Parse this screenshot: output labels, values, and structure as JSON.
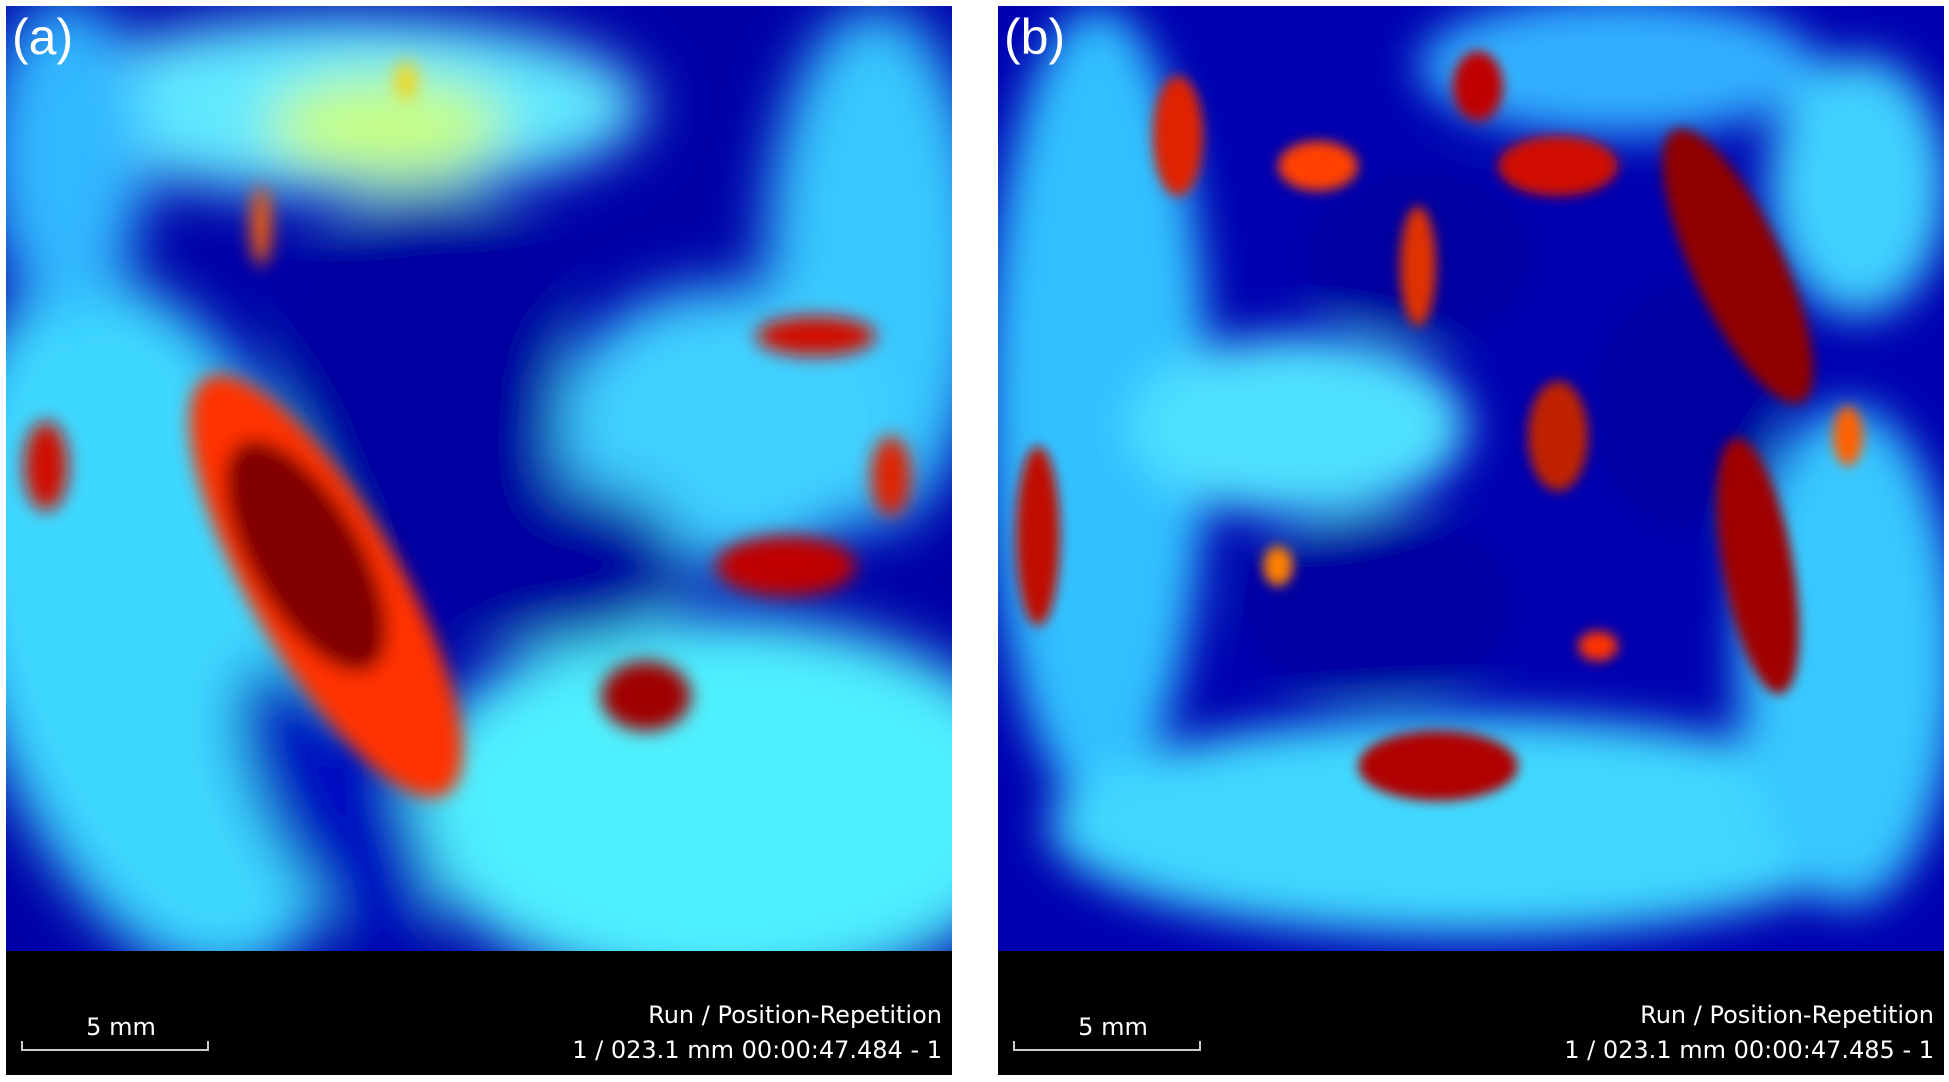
{
  "panels": [
    {
      "label": "(a)",
      "scale_bar": "5 mm",
      "run_title": "Run / Position-Repetition",
      "run_info": "1 / 023.1 mm 00:00:47.484 - 1"
    },
    {
      "label": "(b)",
      "scale_bar": "5 mm",
      "run_title": "Run / Position-Repetition",
      "run_info": "1 / 023.1 mm 00:00:47.485 - 1"
    }
  ]
}
